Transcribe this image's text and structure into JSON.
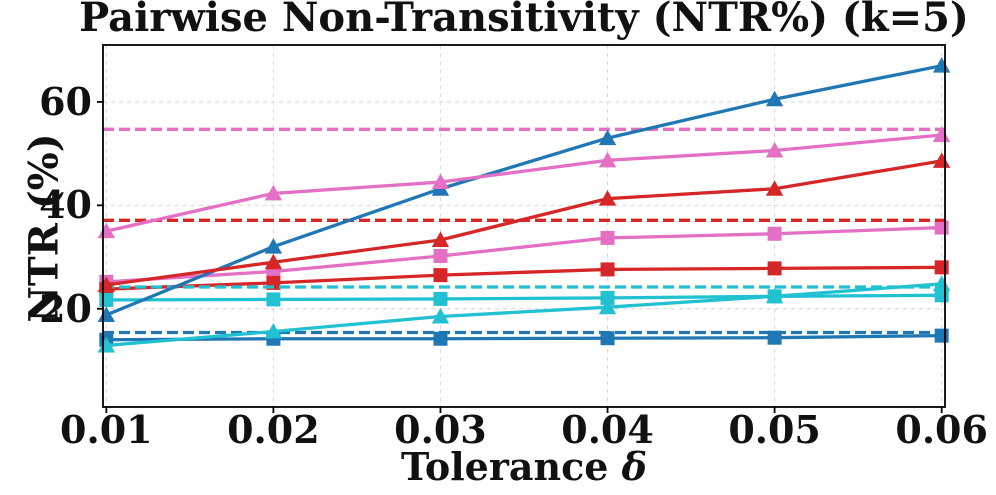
{
  "chart_data": {
    "type": "line",
    "title": "Pairwise Non-Transitivity (NTR%) (k=5)",
    "xlabel": "Tolerance",
    "xlabel_symbol": "δ",
    "ylabel": "NTR (%)",
    "x": [
      0.01,
      0.02,
      0.03,
      0.04,
      0.05,
      0.06
    ],
    "x_tick_labels": [
      "0.01",
      "0.02",
      "0.03",
      "0.04",
      "0.05",
      "0.06"
    ],
    "y_ticks": [
      20,
      40,
      60
    ],
    "y_tick_labels": [
      "20",
      "40",
      "60"
    ],
    "xlim": [
      0.0098,
      0.0602
    ],
    "ylim": [
      1,
      71
    ],
    "grid": true,
    "legend": "none",
    "colors": {
      "blue": "#1f77b4",
      "red": "#d62728",
      "pink": "#e470c5",
      "cyan": "#22c1d2"
    },
    "series": [
      {
        "name": "pink-square",
        "color": "#e470c5",
        "marker": "square",
        "values": [
          25.2,
          27.2,
          30.2,
          33.7,
          34.5,
          35.7
        ]
      },
      {
        "name": "red-square",
        "color": "#d62728",
        "marker": "square",
        "values": [
          23.8,
          25.0,
          26.5,
          27.6,
          27.8,
          28.0
        ]
      },
      {
        "name": "cyan-square",
        "color": "#22c1d2",
        "marker": "square",
        "values": [
          21.7,
          21.8,
          21.9,
          22.1,
          22.4,
          22.6
        ]
      },
      {
        "name": "blue-square",
        "color": "#1f77b4",
        "marker": "square",
        "values": [
          14.0,
          14.2,
          14.2,
          14.3,
          14.4,
          14.8
        ]
      },
      {
        "name": "blue-triangle",
        "color": "#1f77b4",
        "marker": "triangle",
        "values": [
          18.8,
          32.0,
          43.2,
          53.0,
          60.5,
          67.0
        ]
      },
      {
        "name": "red-triangle",
        "color": "#d62728",
        "marker": "triangle",
        "values": [
          24.6,
          29.0,
          33.3,
          41.3,
          43.2,
          48.6
        ]
      },
      {
        "name": "cyan-triangle",
        "color": "#22c1d2",
        "marker": "triangle",
        "values": [
          12.9,
          15.6,
          18.5,
          20.3,
          22.4,
          24.8
        ]
      },
      {
        "name": "pink-triangle",
        "color": "#e470c5",
        "marker": "triangle",
        "values": [
          35.0,
          42.3,
          44.5,
          48.7,
          50.6,
          53.6
        ]
      }
    ],
    "baselines": [
      {
        "name": "pink-dashed",
        "color": "#e470c5",
        "value": 54.7
      },
      {
        "name": "red-dashed",
        "color": "#d62728",
        "value": 37.1
      },
      {
        "name": "cyan-dashed",
        "color": "#22c1d2",
        "value": 24.2
      },
      {
        "name": "blue-dashed",
        "color": "#1f77b4",
        "value": 15.4
      }
    ]
  }
}
